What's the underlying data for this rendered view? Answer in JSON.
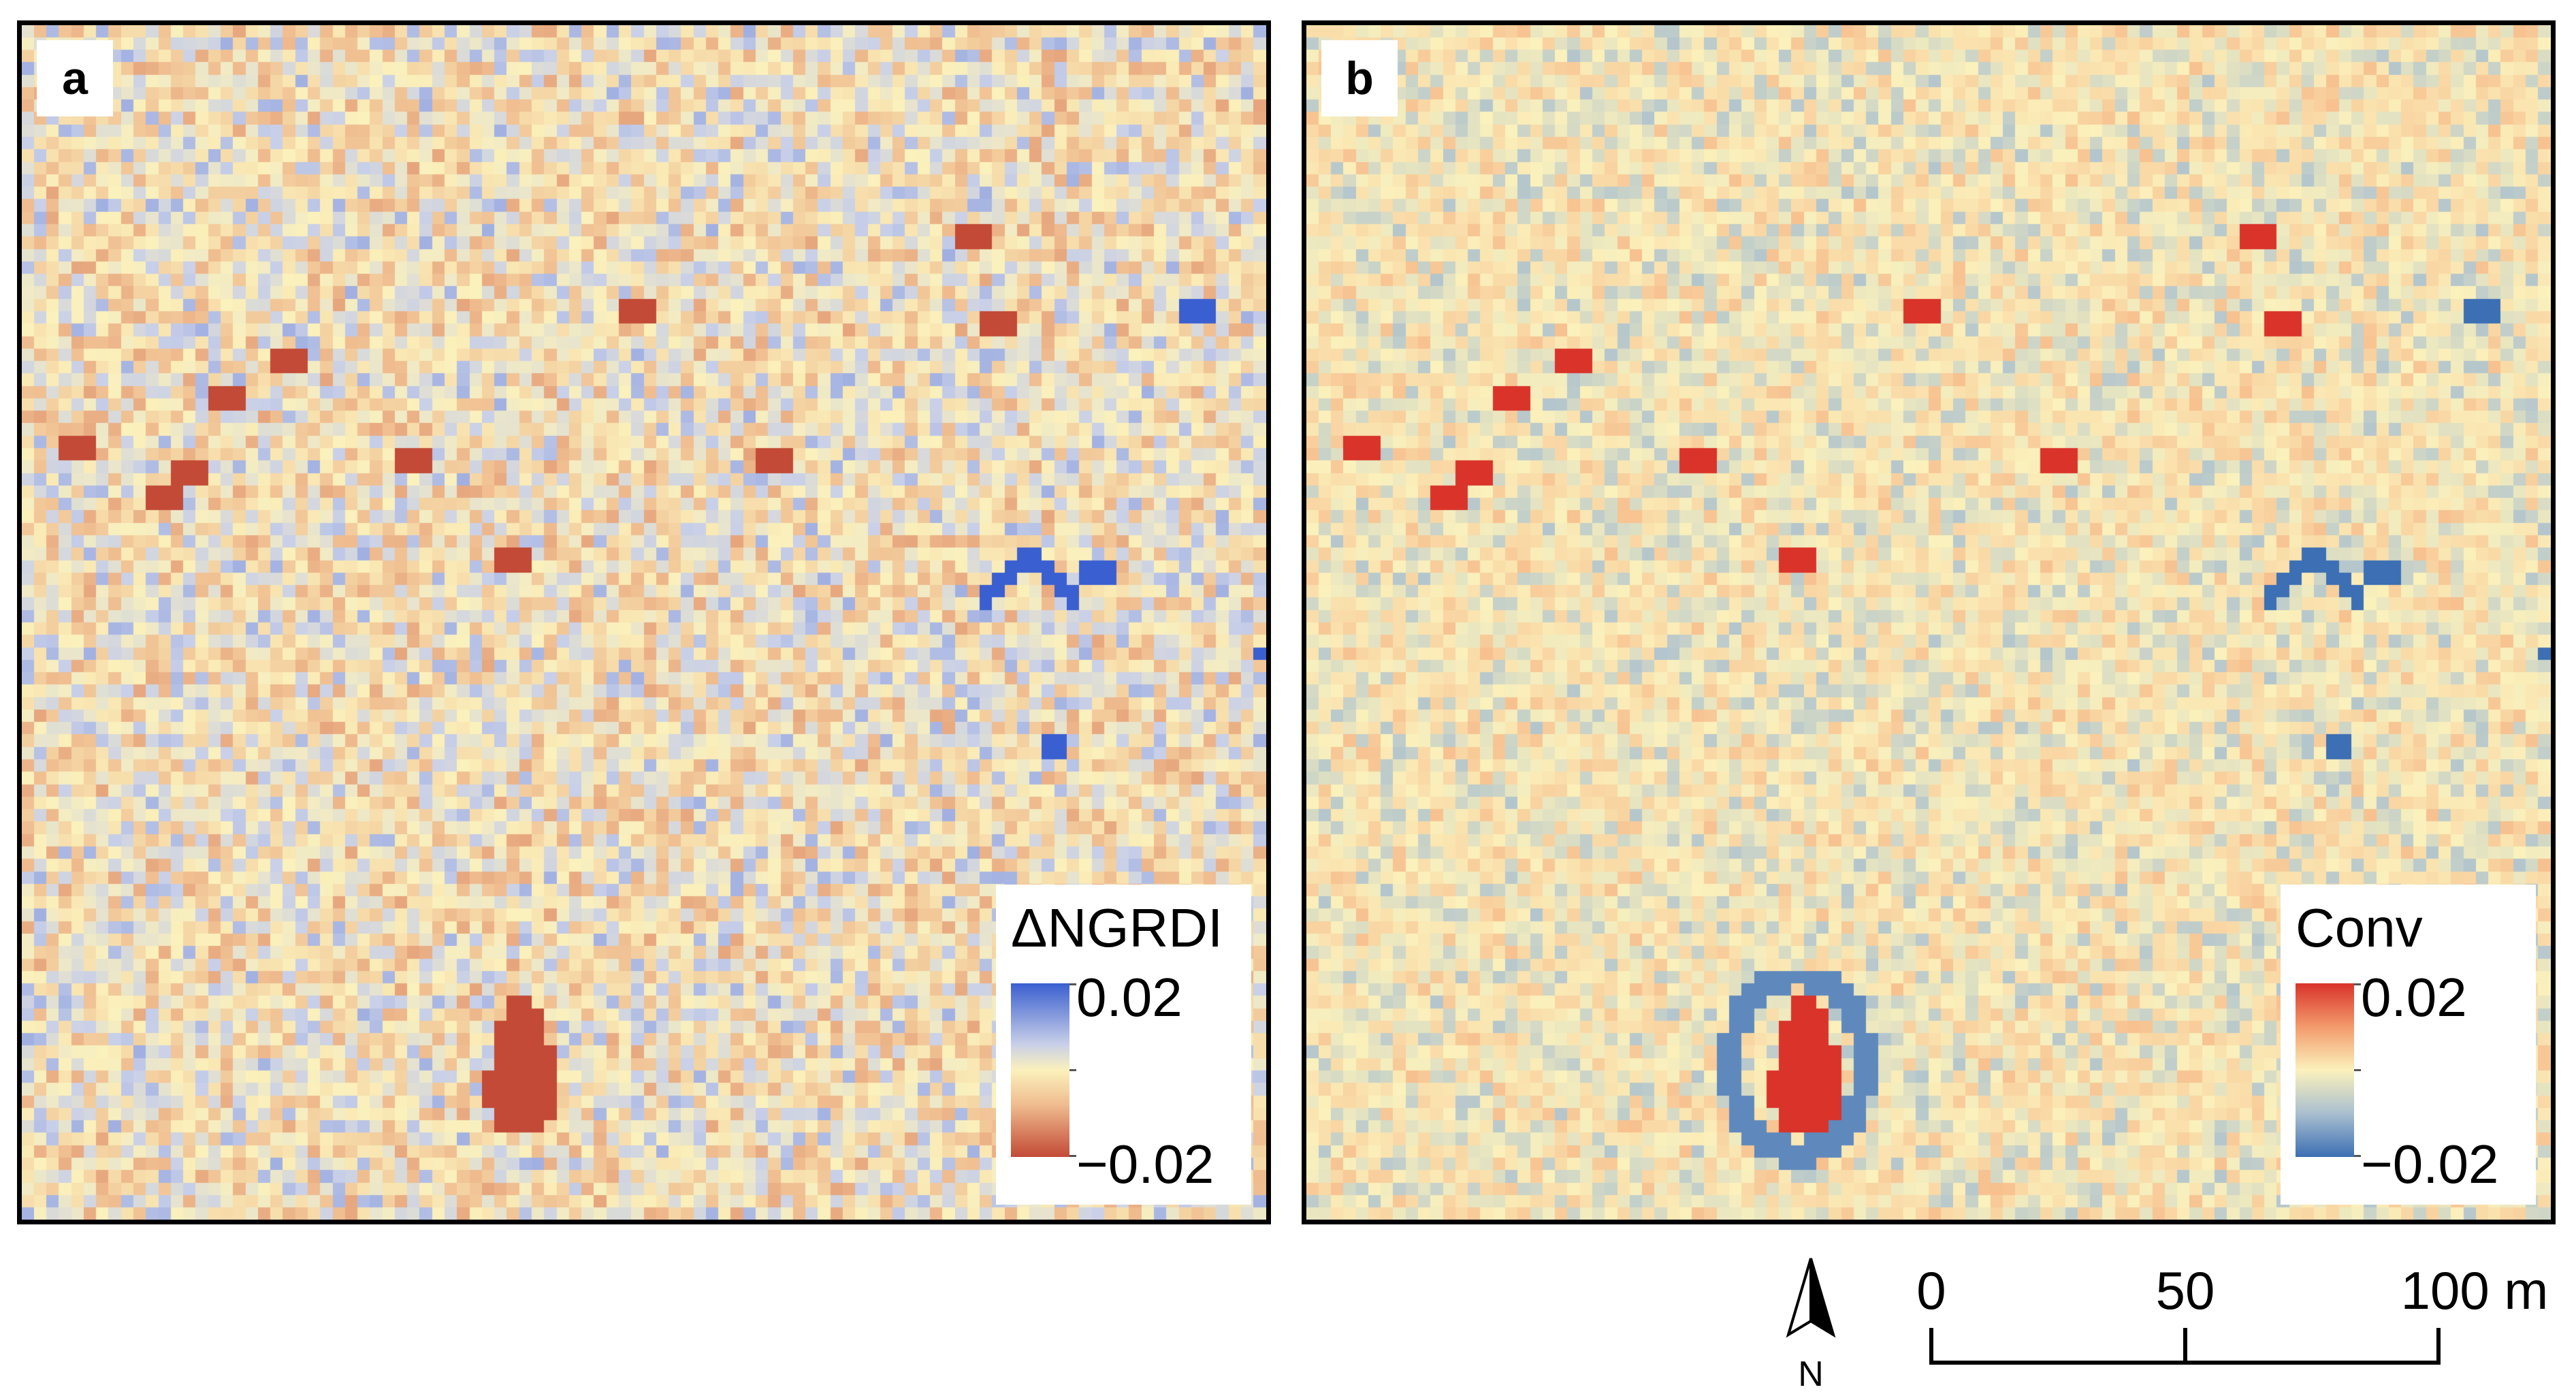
{
  "panels": [
    {
      "label": "a",
      "legend": {
        "title": "ΔNGRDI",
        "max_label": "0.02",
        "min_label": "−0.02",
        "ramp": [
          "#3a5fd0",
          "#c8cfe8",
          "#fbf1bc",
          "#efbc8f",
          "#c24a36"
        ]
      }
    },
    {
      "label": "b",
      "legend": {
        "title": "Conv",
        "max_label": "0.02",
        "min_label": "−0.02",
        "ramp": [
          "#d9332a",
          "#f39a6c",
          "#fbf1bc",
          "#a9bfcf",
          "#3c6fb3"
        ]
      }
    }
  ],
  "north_arrow": {
    "label": "N"
  },
  "scale_bar": {
    "ticks": [
      "0",
      "50",
      "100 m"
    ]
  }
}
